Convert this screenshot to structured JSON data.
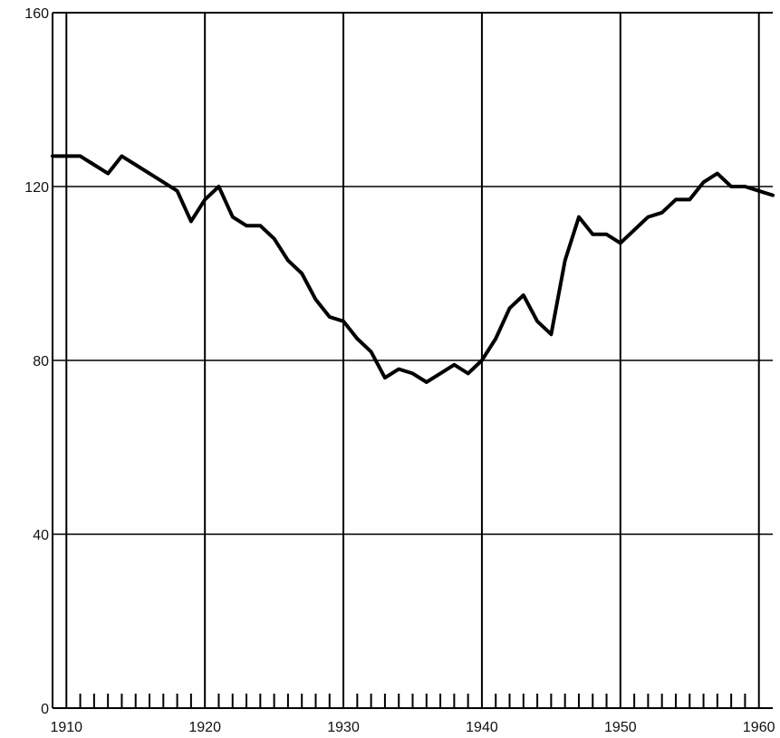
{
  "chart_data": {
    "type": "line",
    "title": "",
    "xlabel": "",
    "ylabel": "",
    "xlim": [
      1909,
      1961
    ],
    "ylim": [
      0,
      160
    ],
    "grid": true,
    "x_ticks": [
      1910,
      1920,
      1930,
      1940,
      1950,
      1960
    ],
    "x_tick_labels": [
      "1910",
      "1920",
      "1930",
      "1940",
      "1950",
      "1960"
    ],
    "y_ticks": [
      0,
      40,
      80,
      120,
      160
    ],
    "y_tick_labels": [
      "0",
      "40",
      "80",
      "120",
      "160"
    ],
    "series": [
      {
        "name": "",
        "x": [
          1909,
          1910,
          1911,
          1912,
          1913,
          1914,
          1915,
          1916,
          1917,
          1918,
          1919,
          1920,
          1921,
          1922,
          1923,
          1924,
          1925,
          1926,
          1927,
          1928,
          1929,
          1930,
          1931,
          1932,
          1933,
          1934,
          1935,
          1936,
          1937,
          1938,
          1939,
          1940,
          1941,
          1942,
          1943,
          1944,
          1945,
          1946,
          1947,
          1948,
          1949,
          1950,
          1951,
          1952,
          1953,
          1954,
          1955,
          1956,
          1957,
          1958,
          1959,
          1960,
          1961
        ],
        "y": [
          127,
          127,
          127,
          125,
          123,
          127,
          125,
          123,
          121,
          119,
          112,
          117,
          120,
          113,
          111,
          111,
          108,
          103,
          100,
          94,
          90,
          89,
          85,
          82,
          76,
          78,
          77,
          75,
          77,
          79,
          77,
          80,
          85,
          92,
          95,
          89,
          86,
          103,
          113,
          109,
          109,
          107,
          110,
          113,
          114,
          117,
          117,
          121,
          123,
          120,
          120,
          119,
          118
        ]
      }
    ]
  }
}
